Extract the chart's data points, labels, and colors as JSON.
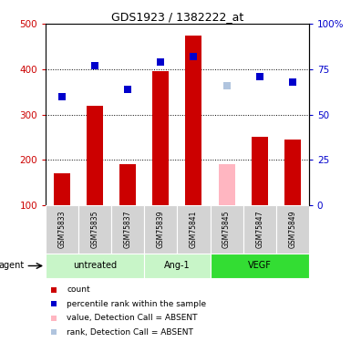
{
  "title": "GDS1923 / 1382222_at",
  "samples": [
    "GSM75833",
    "GSM75835",
    "GSM75837",
    "GSM75839",
    "GSM75841",
    "GSM75845",
    "GSM75847",
    "GSM75849"
  ],
  "count_values": [
    170,
    320,
    190,
    395,
    475,
    null,
    250,
    245
  ],
  "count_absent": [
    null,
    null,
    null,
    null,
    null,
    190,
    null,
    null
  ],
  "rank_values": [
    60,
    77,
    64,
    79,
    82,
    null,
    71,
    68
  ],
  "rank_absent": [
    null,
    null,
    null,
    null,
    null,
    66,
    null,
    null
  ],
  "groups": [
    {
      "label": "untreated",
      "start": 0,
      "end": 3,
      "color": "#c8f5c8"
    },
    {
      "label": "Ang-1",
      "start": 3,
      "end": 5,
      "color": "#c8f5c8"
    },
    {
      "label": "VEGF",
      "start": 5,
      "end": 8,
      "color": "#33dd33"
    }
  ],
  "left_ylim": [
    100,
    500
  ],
  "right_ylim": [
    0,
    100
  ],
  "left_yticks": [
    100,
    200,
    300,
    400,
    500
  ],
  "right_yticks": [
    0,
    25,
    50,
    75,
    100
  ],
  "right_yticklabels": [
    "0",
    "25",
    "50",
    "75",
    "100%"
  ],
  "bar_color": "#cc0000",
  "bar_absent_color": "#ffb6c1",
  "rank_color": "#0000cc",
  "rank_absent_color": "#b0c4de",
  "grid_color": "#000000",
  "bar_width": 0.5,
  "marker_size": 6
}
